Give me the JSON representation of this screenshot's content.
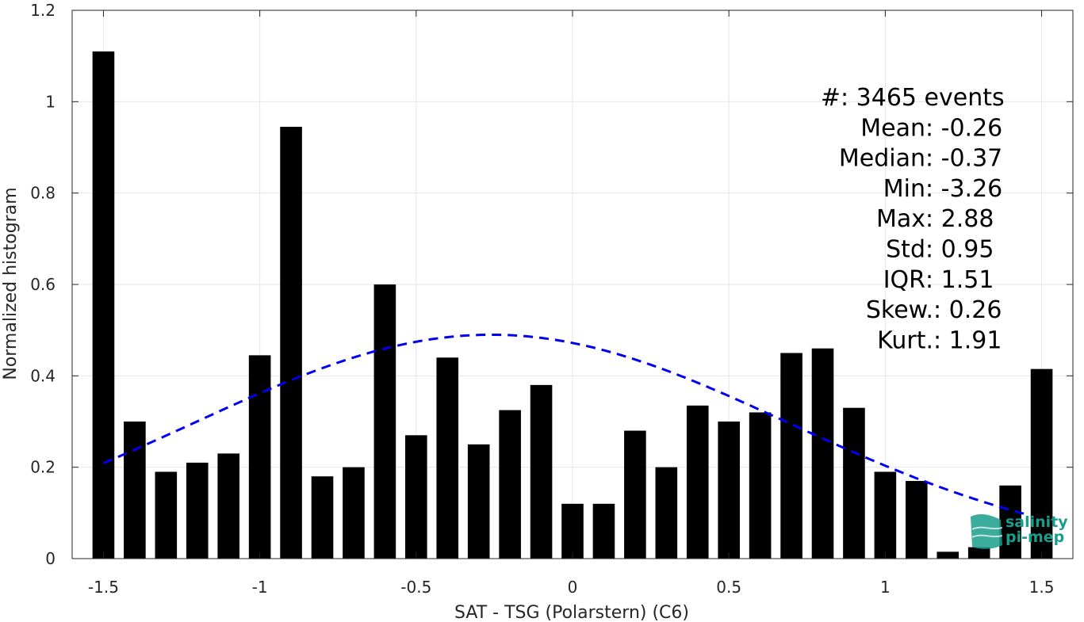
{
  "chart_data": {
    "type": "bar",
    "xlabel": "SAT - TSG (Polarstern) (C6)",
    "ylabel": "Normalized histogram",
    "xlim": [
      -1.6,
      1.6
    ],
    "ylim": [
      0,
      1.2
    ],
    "xticks": [
      -1.5,
      -1,
      -0.5,
      0,
      0.5,
      1,
      1.5
    ],
    "xtick_labels": [
      "-1.5",
      "-1",
      "-0.5",
      "0",
      "0.5",
      "1",
      "1.5"
    ],
    "yticks": [
      0,
      0.2,
      0.4,
      0.6,
      0.8,
      1,
      1.2
    ],
    "ytick_labels": [
      "0",
      "0.2",
      "0.4",
      "0.6",
      "0.8",
      "1",
      "1.2"
    ],
    "grid": true,
    "bar_width": 0.07,
    "bar_color": "#000000",
    "x": [
      -1.5,
      -1.4,
      -1.3,
      -1.2,
      -1.1,
      -1.0,
      -0.9,
      -0.8,
      -0.7,
      -0.6,
      -0.5,
      -0.4,
      -0.3,
      -0.2,
      -0.1,
      0.0,
      0.1,
      0.2,
      0.3,
      0.4,
      0.5,
      0.6,
      0.7,
      0.8,
      0.9,
      1.0,
      1.1,
      1.2,
      1.3,
      1.4,
      1.5
    ],
    "values": [
      1.11,
      0.3,
      0.19,
      0.21,
      0.23,
      0.445,
      0.945,
      0.18,
      0.2,
      0.6,
      0.27,
      0.44,
      0.25,
      0.325,
      0.38,
      0.12,
      0.12,
      0.28,
      0.2,
      0.335,
      0.3,
      0.32,
      0.45,
      0.46,
      0.33,
      0.19,
      0.17,
      0.015,
      0.025,
      0.16,
      0.415
    ],
    "fit_curve": {
      "style": "dashed",
      "color": "#0000ee",
      "mean": -0.26,
      "std": 0.95,
      "peak": 0.49,
      "x_range": [
        -1.5,
        1.45
      ]
    },
    "annotations": [
      {
        "label": "#  ",
        "value": ": 3465 events"
      },
      {
        "label": "Mean ",
        "value": ": -0.26"
      },
      {
        "label": "Median ",
        "value": ": -0.37"
      },
      {
        "label": "Min ",
        "value": ": -3.26"
      },
      {
        "label": "Max ",
        "value": ": 2.88"
      },
      {
        "label": "Std ",
        "value": ": 0.95"
      },
      {
        "label": "IQR ",
        "value": ": 1.51"
      },
      {
        "label": "Skew. ",
        "value": ": 0.26"
      },
      {
        "label": "Kurt. ",
        "value": ": 1.91"
      }
    ]
  },
  "logo": {
    "line1": "salinity",
    "line2": "pi-mep",
    "color": "#1a9e8c"
  }
}
